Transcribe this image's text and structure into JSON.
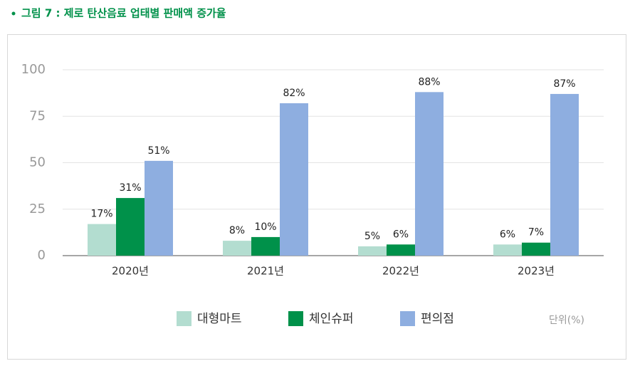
{
  "chart_data": {
    "type": "bar",
    "title": "그림 7 : 제로 탄산음료 업태별 판매액 증가율",
    "categories": [
      "2020년",
      "2021년",
      "2022년",
      "2023년"
    ],
    "series": [
      {
        "name": "대형마트",
        "color": "#b3ddd0",
        "values": [
          17,
          8,
          5,
          6
        ],
        "value_labels": [
          "17%",
          "8%",
          "5%",
          "6%"
        ]
      },
      {
        "name": "체인슈퍼",
        "color": "#00914a",
        "values": [
          31,
          10,
          6,
          7
        ],
        "value_labels": [
          "31%",
          "10%",
          "6%",
          "7%"
        ]
      },
      {
        "name": "편의점",
        "color": "#8eaee0",
        "values": [
          51,
          82,
          88,
          87
        ],
        "value_labels": [
          "51%",
          "82%",
          "88%",
          "87%"
        ]
      }
    ],
    "ylim": [
      0,
      100
    ],
    "yticks": [
      0,
      25,
      50,
      75,
      100
    ],
    "grid": true,
    "unit_label": "단위(%)"
  }
}
